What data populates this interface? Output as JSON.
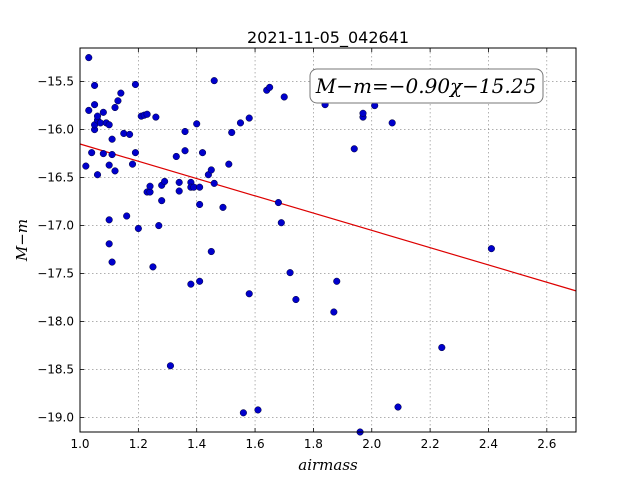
{
  "chart_data": {
    "type": "scatter",
    "title": "2021-11-05_042641",
    "xlabel": "airmass",
    "ylabel": "M−m",
    "xlim": [
      1.0,
      2.7
    ],
    "ylim": [
      -19.15,
      -15.15
    ],
    "x_ticks": [
      "1.0",
      "1.2",
      "1.4",
      "1.6",
      "1.8",
      "2.0",
      "2.2",
      "2.4",
      "2.6"
    ],
    "y_ticks": [
      "−15.5",
      "−16.0",
      "−16.5",
      "−17.0",
      "−17.5",
      "−18.0",
      "−18.5",
      "−19.0"
    ],
    "grid": true,
    "annotation": "M−m=−0.90χ−15.25",
    "fit": {
      "slope": -0.9,
      "intercept": -15.25
    },
    "colors": {
      "points": "#0000cc",
      "fit_line": "#dd0000"
    },
    "points": [
      [
        1.03,
        -15.25
      ],
      [
        1.02,
        -16.38
      ],
      [
        1.03,
        -15.8
      ],
      [
        1.04,
        -16.24
      ],
      [
        1.05,
        -15.54
      ],
      [
        1.05,
        -15.74
      ],
      [
        1.05,
        -16.0
      ],
      [
        1.05,
        -15.95
      ],
      [
        1.06,
        -15.9
      ],
      [
        1.06,
        -15.86
      ],
      [
        1.06,
        -16.47
      ],
      [
        1.07,
        -15.93
      ],
      [
        1.08,
        -15.82
      ],
      [
        1.08,
        -16.25
      ],
      [
        1.09,
        -15.93
      ],
      [
        1.1,
        -16.37
      ],
      [
        1.1,
        -15.95
      ],
      [
        1.1,
        -16.94
      ],
      [
        1.1,
        -17.19
      ],
      [
        1.11,
        -17.38
      ],
      [
        1.11,
        -16.1
      ],
      [
        1.11,
        -16.26
      ],
      [
        1.12,
        -16.43
      ],
      [
        1.12,
        -15.77
      ],
      [
        1.13,
        -15.7
      ],
      [
        1.14,
        -15.62
      ],
      [
        1.15,
        -16.04
      ],
      [
        1.16,
        -16.9
      ],
      [
        1.17,
        -16.05
      ],
      [
        1.18,
        -16.36
      ],
      [
        1.19,
        -15.53
      ],
      [
        1.19,
        -16.24
      ],
      [
        1.2,
        -17.03
      ],
      [
        1.21,
        -15.86
      ],
      [
        1.22,
        -15.85
      ],
      [
        1.23,
        -15.84
      ],
      [
        1.23,
        -16.65
      ],
      [
        1.24,
        -16.65
      ],
      [
        1.24,
        -16.59
      ],
      [
        1.25,
        -17.43
      ],
      [
        1.26,
        -15.87
      ],
      [
        1.27,
        -17.0
      ],
      [
        1.28,
        -16.58
      ],
      [
        1.28,
        -16.74
      ],
      [
        1.29,
        -16.54
      ],
      [
        1.31,
        -18.46
      ],
      [
        1.33,
        -16.28
      ],
      [
        1.34,
        -16.55
      ],
      [
        1.34,
        -16.64
      ],
      [
        1.36,
        -16.02
      ],
      [
        1.36,
        -16.22
      ],
      [
        1.38,
        -17.61
      ],
      [
        1.38,
        -16.55
      ],
      [
        1.38,
        -16.6
      ],
      [
        1.39,
        -16.6
      ],
      [
        1.4,
        -15.94
      ],
      [
        1.41,
        -16.6
      ],
      [
        1.41,
        -16.78
      ],
      [
        1.41,
        -17.58
      ],
      [
        1.42,
        -16.24
      ],
      [
        1.44,
        -16.47
      ],
      [
        1.45,
        -16.42
      ],
      [
        1.45,
        -17.27
      ],
      [
        1.46,
        -16.56
      ],
      [
        1.46,
        -15.49
      ],
      [
        1.49,
        -16.81
      ],
      [
        1.51,
        -16.36
      ],
      [
        1.52,
        -16.03
      ],
      [
        1.55,
        -15.93
      ],
      [
        1.56,
        -18.95
      ],
      [
        1.58,
        -15.88
      ],
      [
        1.58,
        -17.71
      ],
      [
        1.61,
        -18.92
      ],
      [
        1.64,
        -15.59
      ],
      [
        1.65,
        -15.56
      ],
      [
        1.68,
        -16.76
      ],
      [
        1.69,
        -16.97
      ],
      [
        1.7,
        -15.66
      ],
      [
        1.72,
        -17.49
      ],
      [
        1.74,
        -17.77
      ],
      [
        1.84,
        -15.74
      ],
      [
        1.87,
        -17.9
      ],
      [
        1.88,
        -17.58
      ],
      [
        1.94,
        -16.2
      ],
      [
        1.96,
        -19.15
      ],
      [
        1.97,
        -15.87
      ],
      [
        1.97,
        -15.83
      ],
      [
        2.01,
        -15.75
      ],
      [
        2.07,
        -15.93
      ],
      [
        2.09,
        -18.89
      ],
      [
        2.24,
        -18.27
      ],
      [
        2.41,
        -17.24
      ]
    ]
  }
}
